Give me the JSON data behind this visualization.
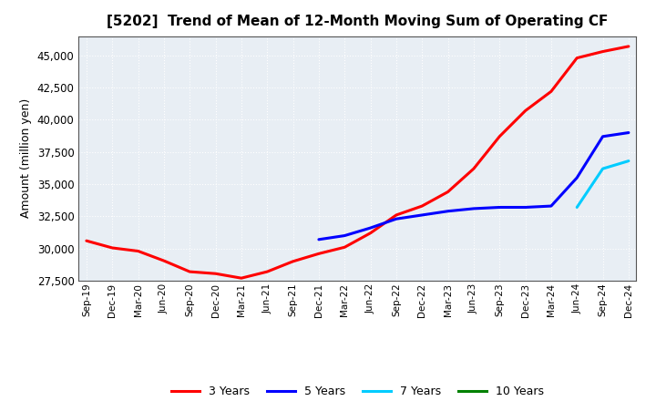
{
  "title": "[5202]  Trend of Mean of 12-Month Moving Sum of Operating CF",
  "ylabel": "Amount (million yen)",
  "background_color": "#ffffff",
  "plot_bg_color": "#e8eef4",
  "grid_color": "#ffffff",
  "ylim": [
    27500,
    46500
  ],
  "yticks": [
    27500,
    30000,
    32500,
    35000,
    37500,
    40000,
    42500,
    45000
  ],
  "xtick_labels": [
    "Sep-19",
    "Dec-19",
    "Mar-20",
    "Jun-20",
    "Sep-20",
    "Dec-20",
    "Mar-21",
    "Jun-21",
    "Sep-21",
    "Dec-21",
    "Mar-22",
    "Jun-22",
    "Sep-22",
    "Dec-22",
    "Mar-23",
    "Jun-23",
    "Sep-23",
    "Dec-23",
    "Mar-24",
    "Jun-24",
    "Sep-24",
    "Dec-24"
  ],
  "series": {
    "3 Years": {
      "color": "#ff0000",
      "data": [
        [
          "Sep-19",
          30600
        ],
        [
          "Dec-19",
          30050
        ],
        [
          "Mar-20",
          29800
        ],
        [
          "Jun-20",
          29050
        ],
        [
          "Sep-20",
          28200
        ],
        [
          "Dec-20",
          28050
        ],
        [
          "Mar-21",
          27700
        ],
        [
          "Jun-21",
          28200
        ],
        [
          "Sep-21",
          29000
        ],
        [
          "Dec-21",
          29600
        ],
        [
          "Mar-22",
          30100
        ],
        [
          "Jun-22",
          31200
        ],
        [
          "Sep-22",
          32600
        ],
        [
          "Dec-22",
          33300
        ],
        [
          "Mar-23",
          34400
        ],
        [
          "Jun-23",
          36200
        ],
        [
          "Sep-23",
          38700
        ],
        [
          "Dec-23",
          40700
        ],
        [
          "Mar-24",
          42200
        ],
        [
          "Jun-24",
          44800
        ],
        [
          "Sep-24",
          45300
        ],
        [
          "Dec-24",
          45700
        ]
      ]
    },
    "5 Years": {
      "color": "#0000ff",
      "data": [
        [
          "Dec-21",
          30700
        ],
        [
          "Mar-22",
          31000
        ],
        [
          "Jun-22",
          31600
        ],
        [
          "Sep-22",
          32300
        ],
        [
          "Dec-22",
          32600
        ],
        [
          "Mar-23",
          32900
        ],
        [
          "Jun-23",
          33100
        ],
        [
          "Sep-23",
          33200
        ],
        [
          "Dec-23",
          33200
        ],
        [
          "Mar-24",
          33300
        ],
        [
          "Jun-24",
          35500
        ],
        [
          "Sep-24",
          38700
        ],
        [
          "Dec-24",
          39000
        ]
      ]
    },
    "7 Years": {
      "color": "#00ccff",
      "data": [
        [
          "Jun-24",
          33200
        ],
        [
          "Sep-24",
          36200
        ],
        [
          "Dec-24",
          36800
        ]
      ]
    },
    "10 Years": {
      "color": "#008000",
      "data": []
    }
  },
  "legend_labels": [
    "3 Years",
    "5 Years",
    "7 Years",
    "10 Years"
  ],
  "legend_colors": [
    "#ff0000",
    "#0000ff",
    "#00ccff",
    "#008000"
  ]
}
